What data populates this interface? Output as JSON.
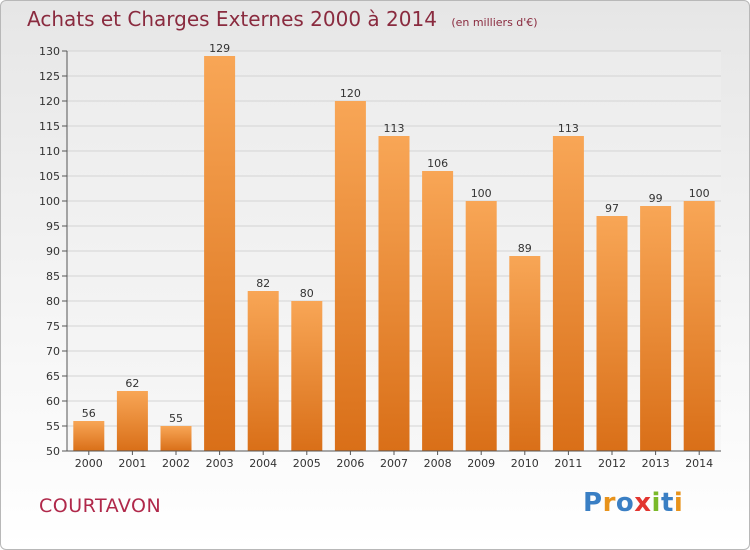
{
  "title": "Achats et Charges Externes 2000 à 2014",
  "unit": "(en milliers d'€)",
  "commune": "COURTAVON",
  "logo": [
    "P",
    "r",
    "o",
    "x",
    "i",
    "t",
    "i"
  ],
  "colors": {
    "bar_top": "#f8a656",
    "bar_bottom": "#d96f18",
    "grid": "#d4d4d4",
    "title": "#8a2b3f"
  },
  "chart_data": {
    "type": "bar",
    "categories": [
      "2000",
      "2001",
      "2002",
      "2003",
      "2004",
      "2005",
      "2006",
      "2007",
      "2008",
      "2009",
      "2010",
      "2011",
      "2012",
      "2013",
      "2014"
    ],
    "values": [
      56,
      62,
      55,
      129,
      82,
      80,
      120,
      113,
      106,
      100,
      89,
      113,
      97,
      99,
      100
    ],
    "title": "Achats et Charges Externes 2000 à 2014",
    "xlabel": "",
    "ylabel": "",
    "ylim": [
      50,
      130
    ],
    "yticks": [
      50,
      55,
      60,
      65,
      70,
      75,
      80,
      85,
      90,
      95,
      100,
      105,
      110,
      115,
      120,
      125,
      130
    ],
    "grid": true,
    "legend": "none"
  }
}
